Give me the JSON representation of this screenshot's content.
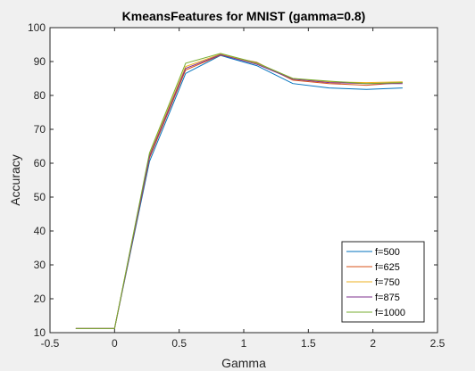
{
  "chart_data": {
    "type": "line",
    "title": "KmeansFeatures for MNIST (gamma=0.8)",
    "xlabel": "Gamma",
    "ylabel": "Accuracy",
    "xlim": [
      -0.5,
      2.5
    ],
    "ylim": [
      10,
      100
    ],
    "xticks": [
      -0.5,
      0,
      0.5,
      1,
      1.5,
      2,
      2.5
    ],
    "xtick_labels": [
      "-0.5",
      "0",
      "0.5",
      "1",
      "1.5",
      "2",
      "2.5"
    ],
    "yticks": [
      10,
      20,
      30,
      40,
      50,
      60,
      70,
      80,
      90,
      100
    ],
    "ytick_labels": [
      "10",
      "20",
      "30",
      "40",
      "50",
      "60",
      "70",
      "80",
      "90",
      "100"
    ],
    "grid": false,
    "legend_position": "bottom-right",
    "x": [
      -0.3,
      0,
      0.27,
      0.55,
      0.82,
      1.1,
      1.38,
      1.66,
      1.95,
      2.23
    ],
    "series": [
      {
        "name": "f=500",
        "color": "#0072bd",
        "values": [
          11.2,
          11.2,
          60.5,
          86.5,
          91.8,
          88.8,
          83.5,
          82.2,
          81.8,
          82.2
        ]
      },
      {
        "name": "f=625",
        "color": "#d95319",
        "values": [
          11.2,
          11.2,
          61.5,
          87.5,
          91.9,
          89.8,
          84.5,
          83.5,
          83.0,
          83.8
        ]
      },
      {
        "name": "f=750",
        "color": "#edb120",
        "values": [
          11.2,
          11.2,
          62.5,
          88.5,
          92.2,
          89.5,
          85.0,
          84.0,
          83.8,
          84.0
        ]
      },
      {
        "name": "f=875",
        "color": "#7e2f8e",
        "values": [
          11.2,
          11.2,
          62.0,
          88.0,
          92.0,
          89.2,
          84.8,
          83.8,
          83.5,
          83.5
        ]
      },
      {
        "name": "f=1000",
        "color": "#77ac30",
        "values": [
          11.2,
          11.2,
          63.0,
          89.5,
          92.4,
          89.6,
          85.0,
          84.2,
          83.5,
          83.8
        ]
      }
    ]
  }
}
